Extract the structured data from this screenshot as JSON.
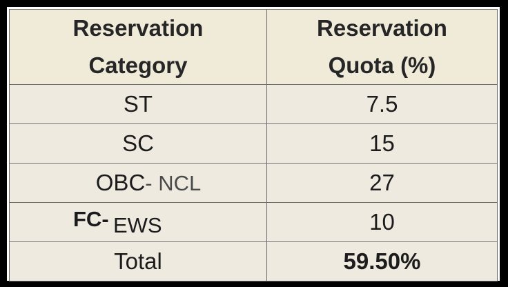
{
  "table": {
    "headers": {
      "col1_line1": "Reservation",
      "col1_line2": "Category",
      "col2_line1": "Reservation",
      "col2_line2": "Quota (%)"
    },
    "rows": [
      {
        "category": "ST",
        "quota": "7.5"
      },
      {
        "category": "SC",
        "quota": "15"
      },
      {
        "category_main": "OBC",
        "category_sub": "- NCL",
        "quota": "27"
      },
      {
        "category_prefix": "FC-",
        "category_rest": "EWS",
        "quota": "10"
      }
    ],
    "total": {
      "label": "Total",
      "value": "59.50%"
    }
  }
}
